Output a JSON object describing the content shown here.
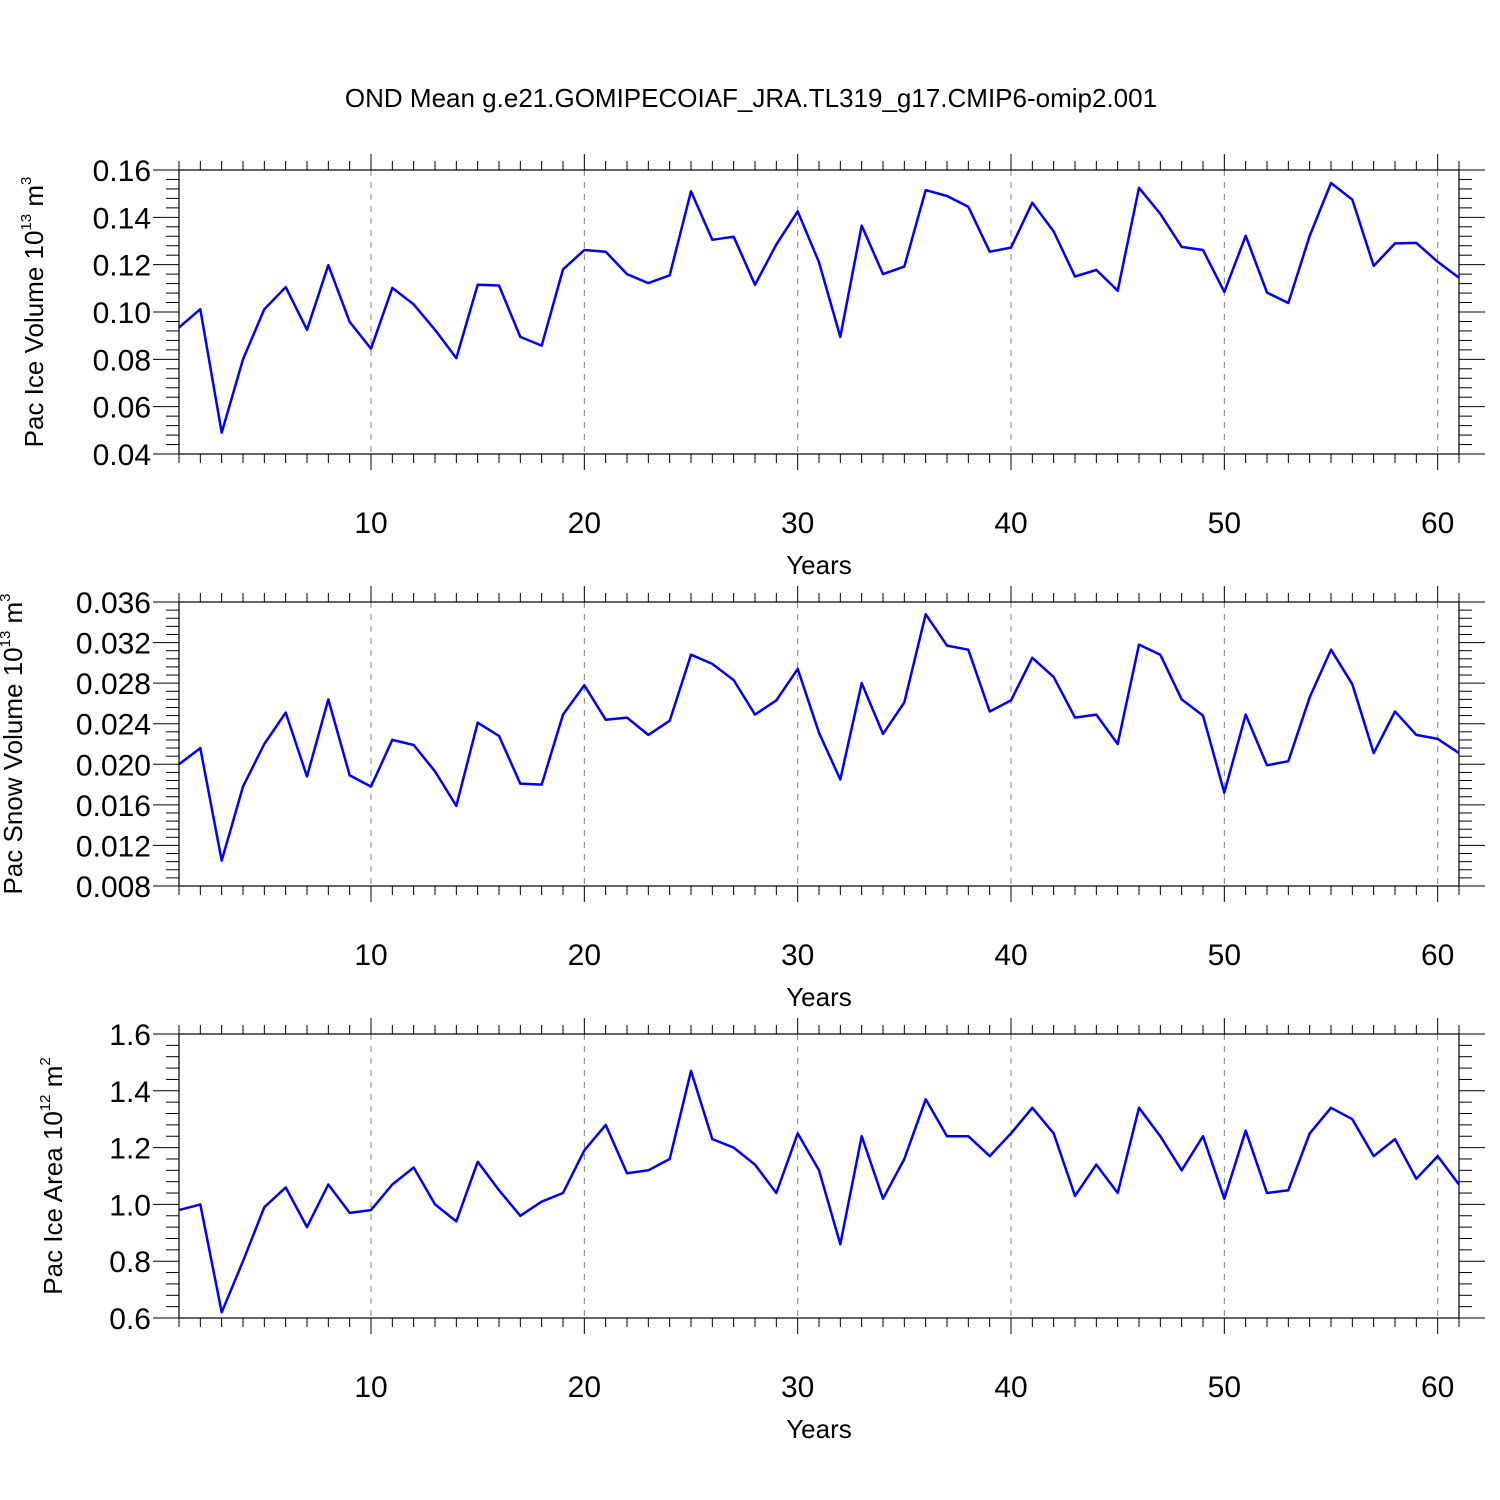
{
  "title": "OND Mean g.e21.GOMIPECOIAF_JRA.TL319_g17.CMIP6-omip2.001",
  "colors": {
    "line": "#0000ff",
    "axis": "#000000",
    "grid": "#808080"
  },
  "chart_data": [
    {
      "type": "line",
      "ylabel_main": "Pac Ice Volume 10",
      "ylabel_exp": "13",
      "ylabel_unit": " m",
      "ylabel_unit_exp": "3",
      "xlabel": "Years",
      "xlim": [
        1,
        61
      ],
      "ylim": [
        0.04,
        0.16
      ],
      "xticks": [
        10,
        20,
        30,
        40,
        50,
        60
      ],
      "xtick_labels": [
        "10",
        "20",
        "30",
        "40",
        "50",
        "60"
      ],
      "yticks": [
        0.04,
        0.06,
        0.08,
        0.1,
        0.12,
        0.14,
        0.16
      ],
      "ytick_labels": [
        "0.04",
        "0.06",
        "0.08",
        "0.10",
        "0.12",
        "0.14",
        "0.16"
      ],
      "x": [
        1,
        2,
        3,
        4,
        5,
        6,
        7,
        8,
        9,
        10,
        11,
        12,
        13,
        14,
        15,
        16,
        17,
        18,
        19,
        20,
        21,
        22,
        23,
        24,
        25,
        26,
        27,
        28,
        29,
        30,
        31,
        32,
        33,
        34,
        35,
        36,
        37,
        38,
        39,
        40,
        41,
        42,
        43,
        44,
        45,
        46,
        47,
        48,
        49,
        50,
        51,
        52,
        53,
        54,
        55,
        56,
        57,
        58,
        59,
        60,
        61
      ],
      "values": [
        0.0935,
        0.1012,
        0.049,
        0.08,
        0.1012,
        0.1105,
        0.0925,
        0.1198,
        0.0958,
        0.0845,
        0.1102,
        0.1032,
        0.0925,
        0.0805,
        0.1115,
        0.1112,
        0.0895,
        0.0858,
        0.118,
        0.1262,
        0.1255,
        0.116,
        0.1122,
        0.1155,
        0.151,
        0.1305,
        0.1318,
        0.1115,
        0.1285,
        0.1425,
        0.121,
        0.0895,
        0.1365,
        0.116,
        0.1192,
        0.1515,
        0.149,
        0.1445,
        0.1255,
        0.1272,
        0.1462,
        0.134,
        0.115,
        0.1178,
        0.109,
        0.1525,
        0.1415,
        0.1275,
        0.1262,
        0.1085,
        0.1322,
        0.1082,
        0.1038,
        0.1322,
        0.1545,
        0.1475,
        0.1195,
        0.129,
        0.1292,
        0.1212,
        0.1145
      ]
    },
    {
      "type": "line",
      "ylabel_main": "Pac Snow Volume 10",
      "ylabel_exp": "13",
      "ylabel_unit": " m",
      "ylabel_unit_exp": "3",
      "xlabel": "Years",
      "xlim": [
        1,
        61
      ],
      "ylim": [
        0.008,
        0.036
      ],
      "xticks": [
        10,
        20,
        30,
        40,
        50,
        60
      ],
      "xtick_labels": [
        "10",
        "20",
        "30",
        "40",
        "50",
        "60"
      ],
      "yticks": [
        0.008,
        0.012,
        0.016,
        0.02,
        0.024,
        0.028,
        0.032,
        0.036
      ],
      "ytick_labels": [
        "0.008",
        "0.012",
        "0.016",
        "0.020",
        "0.024",
        "0.028",
        "0.032",
        "0.036"
      ],
      "x": [
        1,
        2,
        3,
        4,
        5,
        6,
        7,
        8,
        9,
        10,
        11,
        12,
        13,
        14,
        15,
        16,
        17,
        18,
        19,
        20,
        21,
        22,
        23,
        24,
        25,
        26,
        27,
        28,
        29,
        30,
        31,
        32,
        33,
        34,
        35,
        36,
        37,
        38,
        39,
        40,
        41,
        42,
        43,
        44,
        45,
        46,
        47,
        48,
        49,
        50,
        51,
        52,
        53,
        54,
        55,
        56,
        57,
        58,
        59,
        60,
        61
      ],
      "values": [
        0.02,
        0.0216,
        0.0105,
        0.0178,
        0.022,
        0.0251,
        0.0188,
        0.0264,
        0.0189,
        0.0178,
        0.0224,
        0.0219,
        0.0193,
        0.0159,
        0.0241,
        0.0228,
        0.0181,
        0.018,
        0.0249,
        0.0278,
        0.0244,
        0.0246,
        0.0229,
        0.0243,
        0.0308,
        0.0299,
        0.0283,
        0.0249,
        0.0263,
        0.0294,
        0.0231,
        0.0185,
        0.028,
        0.023,
        0.0261,
        0.0348,
        0.0317,
        0.0313,
        0.0252,
        0.0263,
        0.0305,
        0.0286,
        0.0246,
        0.0249,
        0.022,
        0.0318,
        0.0308,
        0.0264,
        0.0248,
        0.0172,
        0.0249,
        0.0199,
        0.0203,
        0.0266,
        0.0313,
        0.0279,
        0.0211,
        0.0252,
        0.0229,
        0.0225,
        0.0211
      ]
    },
    {
      "type": "line",
      "ylabel_main": "Pac Ice Area 10",
      "ylabel_exp": "12",
      "ylabel_unit": " m",
      "ylabel_unit_exp": "2",
      "xlabel": "Years",
      "xlim": [
        1,
        61
      ],
      "ylim": [
        0.6,
        1.6
      ],
      "xticks": [
        10,
        20,
        30,
        40,
        50,
        60
      ],
      "xtick_labels": [
        "10",
        "20",
        "30",
        "40",
        "50",
        "60"
      ],
      "yticks": [
        0.6,
        0.8,
        1.0,
        1.2,
        1.4,
        1.6
      ],
      "ytick_labels": [
        "0.6",
        "0.8",
        "1.0",
        "1.2",
        "1.4",
        "1.6"
      ],
      "x": [
        1,
        2,
        3,
        4,
        5,
        6,
        7,
        8,
        9,
        10,
        11,
        12,
        13,
        14,
        15,
        16,
        17,
        18,
        19,
        20,
        21,
        22,
        23,
        24,
        25,
        26,
        27,
        28,
        29,
        30,
        31,
        32,
        33,
        34,
        35,
        36,
        37,
        38,
        39,
        40,
        41,
        42,
        43,
        44,
        45,
        46,
        47,
        48,
        49,
        50,
        51,
        52,
        53,
        54,
        55,
        56,
        57,
        58,
        59,
        60,
        61
      ],
      "values": [
        0.98,
        1.0,
        0.62,
        0.8,
        0.99,
        1.06,
        0.92,
        1.07,
        0.97,
        0.98,
        1.07,
        1.13,
        1.0,
        0.94,
        1.15,
        1.05,
        0.96,
        1.01,
        1.04,
        1.19,
        1.28,
        1.11,
        1.12,
        1.16,
        1.47,
        1.23,
        1.2,
        1.14,
        1.04,
        1.25,
        1.12,
        0.86,
        1.24,
        1.02,
        1.16,
        1.37,
        1.24,
        1.24,
        1.17,
        1.25,
        1.34,
        1.25,
        1.03,
        1.14,
        1.04,
        1.34,
        1.24,
        1.12,
        1.24,
        1.02,
        1.26,
        1.04,
        1.05,
        1.25,
        1.34,
        1.3,
        1.17,
        1.23,
        1.09,
        1.17,
        1.07
      ]
    }
  ]
}
